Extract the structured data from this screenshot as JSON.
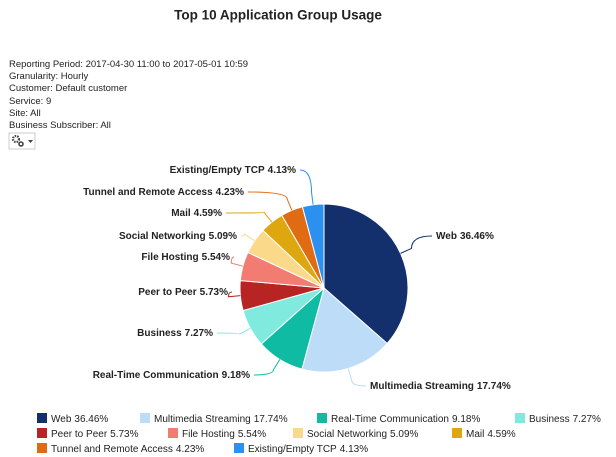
{
  "chart_data": {
    "type": "pie",
    "title": "Top 10 Application Group Usage",
    "categories": [
      "Web",
      "Multimedia Streaming",
      "Real-Time Communication",
      "Business",
      "Peer to Peer",
      "File Hosting",
      "Social Networking",
      "Mail",
      "Tunnel and Remote Access",
      "Existing/Empty TCP"
    ],
    "values": [
      36.46,
      17.74,
      9.18,
      7.27,
      5.73,
      5.54,
      5.09,
      4.59,
      4.23,
      4.13
    ],
    "value_labels": [
      "36.46%",
      "17.74%",
      "9.18%",
      "7.27%",
      "5.73%",
      "5.54%",
      "5.09%",
      "4.59%",
      "4.23%",
      "4.13%"
    ],
    "colors": [
      "#14306c",
      "#bcdcf8",
      "#10bba4",
      "#80eadf",
      "#b82424",
      "#f27c72",
      "#fbd98b",
      "#dfa70f",
      "#e06b12",
      "#2b90f0"
    ]
  },
  "report_info": [
    "Reporting Period: 2017-04-30 11:00 to 2017-05-01 10:59",
    "Granularity: Hourly",
    "Customer: Default customer",
    "Service: 9",
    "Site: All",
    "Business Subscriber: All"
  ]
}
